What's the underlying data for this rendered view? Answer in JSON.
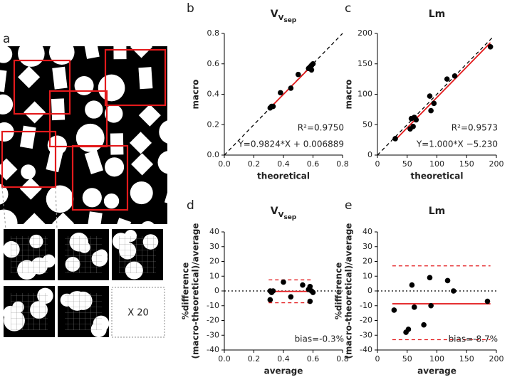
{
  "panel_a": {
    "label": "a",
    "note": "X 20"
  },
  "chart_data": [
    {
      "type": "scatter",
      "panel_label": "b",
      "title": "V",
      "title_sub": "V",
      "title_subsub": "sep",
      "xlabel": "theoretical",
      "ylabel": [
        "macro"
      ],
      "xlim": [
        0,
        0.8
      ],
      "ylim": [
        0,
        0.8
      ],
      "xticks": [
        {
          "value": 0,
          "label": "0.0"
        },
        0.2,
        0.4,
        0.6,
        0.8
      ],
      "yticks": [
        {
          "value": 0,
          "label": "0.0"
        },
        0.2,
        0.4,
        0.6,
        0.8
      ],
      "x": [
        0.31,
        0.32,
        0.33,
        0.38,
        0.45,
        0.5,
        0.57,
        0.58,
        0.59,
        0.6,
        0.59
      ],
      "y": [
        0.31,
        0.32,
        0.32,
        0.41,
        0.44,
        0.53,
        0.57,
        0.58,
        0.59,
        0.6,
        0.56
      ],
      "point_color": "#000000",
      "lines": [
        {
          "x": [
            0,
            0.8
          ],
          "y": [
            0,
            0.8
          ],
          "color": "#000000",
          "dash": "dashed"
        },
        {
          "x": [
            0.31,
            0.6
          ],
          "y": [
            0.311,
            0.596
          ],
          "color": "#e31a1c",
          "dash": "solid"
        }
      ],
      "annotations": [
        "R²=0.9750",
        "Y=0.9824*X + 0.006889"
      ]
    },
    {
      "type": "scatter",
      "panel_label": "c",
      "title": "Lm",
      "xlabel": "theoretical",
      "ylabel": [
        "macro"
      ],
      "xlim": [
        0,
        200
      ],
      "ylim": [
        0,
        200
      ],
      "xticks": [
        0,
        50,
        100,
        150,
        200
      ],
      "yticks": [
        0,
        50,
        100,
        150,
        200
      ],
      "x": [
        30,
        55,
        57,
        60,
        62,
        65,
        88,
        90,
        95,
        117,
        130,
        190
      ],
      "y": [
        27,
        43,
        60,
        47,
        62,
        58,
        97,
        73,
        85,
        125,
        130,
        178
      ],
      "point_color": "#000000",
      "lines": [
        {
          "x": [
            0,
            195
          ],
          "y": [
            0,
            195
          ],
          "color": "#000000",
          "dash": "dashed"
        },
        {
          "x": [
            30,
            190
          ],
          "y": [
            24.8,
            184.8
          ],
          "color": "#e31a1c",
          "dash": "solid"
        }
      ],
      "annotations": [
        "R²=0.9573",
        "Y=1.000*X −5.230"
      ]
    },
    {
      "type": "scatter",
      "panel_label": "d",
      "title": "V",
      "title_sub": "V",
      "title_subsub": "sep",
      "xlabel": "average",
      "ylabel": [
        "%difference",
        "(macro-theoretical)/average"
      ],
      "xlim": [
        0,
        0.8
      ],
      "ylim": [
        -40,
        40
      ],
      "xticks": [
        {
          "value": 0,
          "label": "0.0"
        },
        0.2,
        0.4,
        0.6,
        0.8
      ],
      "yticks": [
        -40,
        -30,
        -20,
        -10,
        0,
        10,
        20,
        30,
        40
      ],
      "x": [
        0.31,
        0.31,
        0.32,
        0.33,
        0.4,
        0.45,
        0.53,
        0.57,
        0.58,
        0.58,
        0.6,
        0.59
      ],
      "y": [
        -6,
        0,
        -1,
        0,
        6,
        -4,
        4,
        1,
        -7,
        3,
        -1,
        0
      ],
      "point_color": "#000000",
      "lines": [
        {
          "x": [
            0,
            0.8
          ],
          "y": [
            0,
            0
          ],
          "color": "#000000",
          "dash": "dotted"
        },
        {
          "x": [
            0.3,
            0.6
          ],
          "y": [
            -0.3,
            -0.3
          ],
          "color": "#e31a1c",
          "dash": "solid"
        },
        {
          "x": [
            0.3,
            0.6
          ],
          "y": [
            7.5,
            7.5
          ],
          "color": "#e31a1c",
          "dash": "dashed"
        },
        {
          "x": [
            0.3,
            0.6
          ],
          "y": [
            -8,
            -8
          ],
          "color": "#e31a1c",
          "dash": "dashed"
        }
      ],
      "annotations": [
        "bias=-0.3%"
      ]
    },
    {
      "type": "scatter",
      "panel_label": "e",
      "title": "Lm",
      "xlabel": "average",
      "ylabel": [
        "%difference",
        "(macro-theoretical)/average"
      ],
      "xlim": [
        0,
        200
      ],
      "ylim": [
        -40,
        40
      ],
      "xticks": [
        0,
        50,
        100,
        150,
        200
      ],
      "yticks": [
        -40,
        -30,
        -20,
        -10,
        0,
        10,
        20,
        30,
        40
      ],
      "x": [
        28,
        48,
        52,
        58,
        62,
        78,
        88,
        90,
        118,
        128,
        185
      ],
      "y": [
        -13,
        -28,
        -26,
        4,
        -11,
        -23,
        9,
        -10,
        7,
        0,
        -7
      ],
      "point_color": "#000000",
      "lines": [
        {
          "x": [
            0,
            200
          ],
          "y": [
            0,
            0
          ],
          "color": "#000000",
          "dash": "dotted"
        },
        {
          "x": [
            25,
            190
          ],
          "y": [
            -8.7,
            -8.7
          ],
          "color": "#e31a1c",
          "dash": "solid"
        },
        {
          "x": [
            25,
            190
          ],
          "y": [
            17,
            17
          ],
          "color": "#e31a1c",
          "dash": "dashed"
        },
        {
          "x": [
            25,
            190
          ],
          "y": [
            -33,
            -33
          ],
          "color": "#e31a1c",
          "dash": "dashed"
        }
      ],
      "annotations": [
        "bias=-8.7%"
      ]
    }
  ]
}
